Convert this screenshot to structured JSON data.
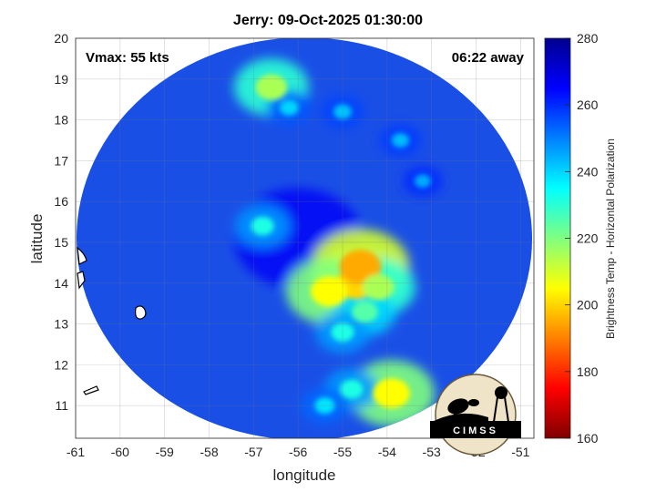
{
  "title": "Jerry: 09-Oct-2025 01:30:00",
  "annotations": {
    "vmax": "Vmax: 55 kts",
    "time_away": "06:22 away"
  },
  "axes": {
    "xlabel": "longitude",
    "ylabel": "latitude",
    "x_ticks": [
      "-61",
      "-60",
      "-59",
      "-58",
      "-57",
      "-56",
      "-55",
      "-54",
      "-53",
      "-52",
      "-51"
    ],
    "y_ticks": [
      "20",
      "19",
      "18",
      "17",
      "16",
      "15",
      "14",
      "13",
      "12",
      "11"
    ],
    "xlim": [
      -61,
      -50.7
    ],
    "ylim": [
      10.2,
      20
    ],
    "grid": true
  },
  "colorbar": {
    "label": "Brightness Temp - Horizontal Polarization",
    "ticks": [
      "280",
      "260",
      "240",
      "220",
      "200",
      "180",
      "160"
    ],
    "range": [
      160,
      280
    ],
    "colormap": "jet"
  },
  "logo": {
    "text": "CIMSS"
  },
  "chart_data": {
    "type": "heatmap",
    "title": "Jerry: 09-Oct-2025 01:30:00",
    "xlabel": "longitude",
    "ylabel": "latitude",
    "xlim": [
      -61,
      -50.7
    ],
    "ylim": [
      10.2,
      20
    ],
    "colorbar_label": "Brightness Temp - Horizontal Polarization",
    "colorbar_range": [
      160,
      280
    ],
    "swath_center": [
      -56.0,
      15.1
    ],
    "background_value": 258,
    "features": [
      {
        "lon": -54.7,
        "lat": 14.0,
        "value": 200
      },
      {
        "lon": -54.6,
        "lat": 14.4,
        "value": 195
      },
      {
        "lon": -55.3,
        "lat": 13.8,
        "value": 205
      },
      {
        "lon": -54.2,
        "lat": 13.9,
        "value": 215
      },
      {
        "lon": -54.5,
        "lat": 13.3,
        "value": 225
      },
      {
        "lon": -55.0,
        "lat": 12.8,
        "value": 232
      },
      {
        "lon": -53.9,
        "lat": 11.3,
        "value": 205
      },
      {
        "lon": -54.8,
        "lat": 11.4,
        "value": 232
      },
      {
        "lon": -55.4,
        "lat": 11.0,
        "value": 238
      },
      {
        "lon": -56.6,
        "lat": 18.8,
        "value": 215
      },
      {
        "lon": -56.2,
        "lat": 18.3,
        "value": 240
      },
      {
        "lon": -55.0,
        "lat": 18.2,
        "value": 242
      },
      {
        "lon": -53.7,
        "lat": 17.5,
        "value": 243
      },
      {
        "lon": -53.2,
        "lat": 16.5,
        "value": 245
      },
      {
        "lon": -56.8,
        "lat": 15.4,
        "value": 232
      }
    ]
  }
}
